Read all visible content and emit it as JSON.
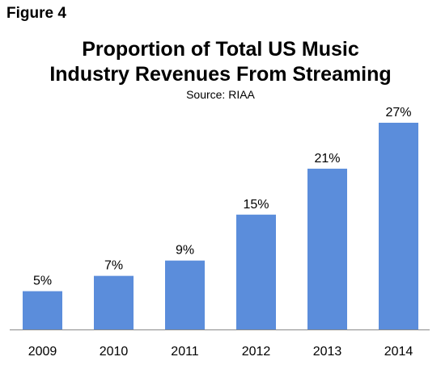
{
  "figure_label": "Figure 4",
  "title_line1": "Proportion of Total US Music",
  "title_line2": "Industry Revenues From Streaming",
  "source": "Source: RIAA",
  "colors": {
    "bar": "#5b8ddb",
    "axis": "#8a8a8a",
    "text": "#000000"
  },
  "chart_data": {
    "type": "bar",
    "categories": [
      "2009",
      "2010",
      "2011",
      "2012",
      "2013",
      "2014"
    ],
    "values": [
      5,
      7,
      9,
      15,
      21,
      27
    ],
    "value_labels": [
      "5%",
      "7%",
      "9%",
      "15%",
      "21%",
      "27%"
    ],
    "title": "Proportion of Total US Music Industry Revenues From Streaming",
    "subtitle": "Source: RIAA",
    "xlabel": "",
    "ylabel": "",
    "ylim": [
      0,
      27
    ],
    "grid": false,
    "legend": "none"
  }
}
